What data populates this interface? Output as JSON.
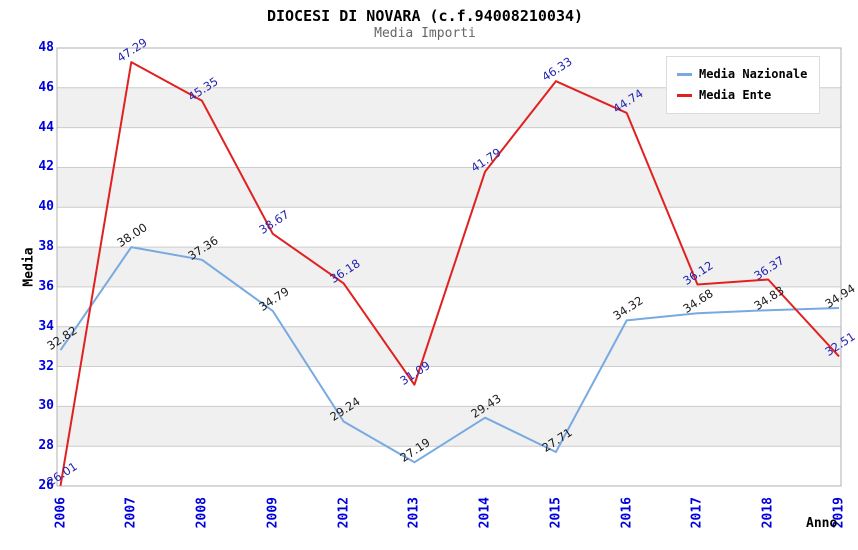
{
  "chart_data": {
    "type": "line",
    "title": "DIOCESI DI NOVARA (c.f.94008210034)",
    "subtitle": "Media Importi",
    "xlabel": "Anno",
    "ylabel": "Media",
    "ylim": [
      26,
      48
    ],
    "ytick_step": 2,
    "grid": "horizontal-only",
    "background_bands": "alternating gray bands between even gridlines",
    "legend_position": "top-right",
    "categories": [
      "2006",
      "2007",
      "2008",
      "2009",
      "2012",
      "2013",
      "2014",
      "2015",
      "2016",
      "2017",
      "2018",
      "2019"
    ],
    "series": [
      {
        "name": "Media Nazionale",
        "color": "#78aae1",
        "label_color": "#1a1a1a",
        "values": [
          32.82,
          38.0,
          37.36,
          34.79,
          29.24,
          27.19,
          29.43,
          27.71,
          34.32,
          34.68,
          34.83,
          34.94
        ],
        "labels": [
          "32.82",
          "38.00",
          "37.36",
          "34.79",
          "29.24",
          "27.19",
          "29.43",
          "27.71",
          "34.32",
          "34.68",
          "34.83",
          "34.94"
        ]
      },
      {
        "name": "Media Ente",
        "color": "#e12120",
        "label_color": "#2323b4",
        "values": [
          26.01,
          47.29,
          45.35,
          38.67,
          36.18,
          31.09,
          41.79,
          46.33,
          44.74,
          36.12,
          36.37,
          32.51
        ],
        "labels": [
          "26.01",
          "47.29",
          "45.35",
          "38.67",
          "36.18",
          "31.09",
          "41.79",
          "46.33",
          "44.74",
          "36.12",
          "36.37",
          "32.51"
        ]
      }
    ],
    "colors": {
      "band": "#f0f0f0",
      "grid": "#cccccc",
      "plot_border": "#b0b0b0",
      "tick": "#0000dd",
      "subtitle": "#666666"
    }
  }
}
